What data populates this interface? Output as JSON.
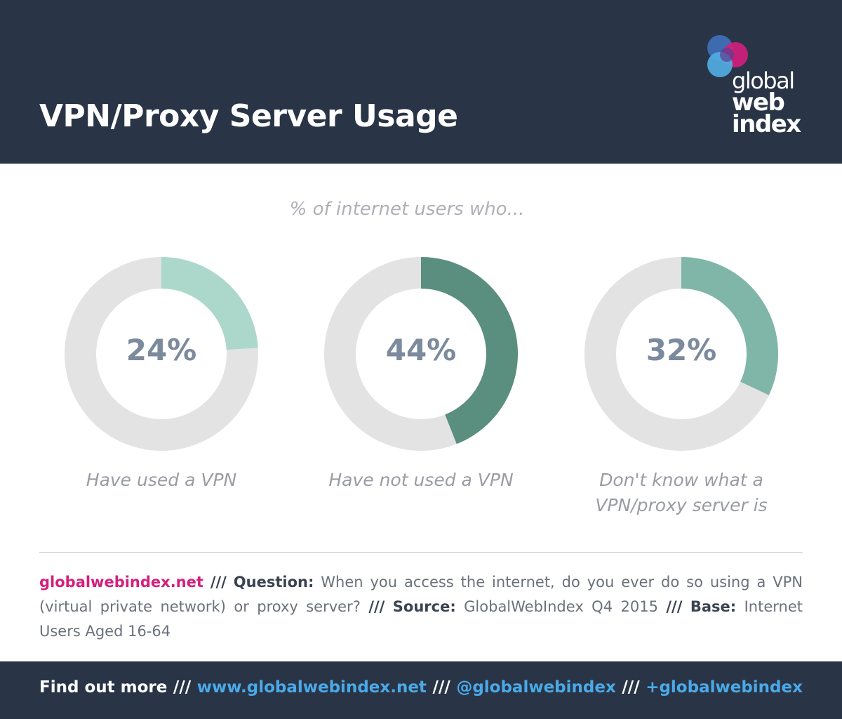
{
  "header": {
    "title": "VPN/Proxy Server Usage",
    "logo": {
      "line1": "global",
      "line2": "web",
      "line3": "index"
    }
  },
  "colors": {
    "header_bg": "#293546",
    "donut_track": "#e3e3e3",
    "accent_pink": "#d41f7d",
    "accent_blue": "#4aa9e8"
  },
  "chart_data": {
    "type": "pie",
    "variant": "donut",
    "title": "% of internet users who...",
    "categories": [
      "Have used a VPN",
      "Have not used a VPN",
      "Don't know what a VPN/proxy server is"
    ],
    "values": [
      24,
      44,
      32
    ],
    "value_labels": [
      "24%",
      "44%",
      "32%"
    ],
    "colors": [
      "#acd8cb",
      "#5a8e7e",
      "#7fb6a7"
    ]
  },
  "note": {
    "site": "globalwebindex.net",
    "sep": "///",
    "question_key": "Question:",
    "question": "When you access the internet, do you ever do so using a VPN (virtual private network) or proxy server?",
    "source_key": "Source:",
    "source": "GlobalWebIndex Q4 2015",
    "base_key": "Base:",
    "base": "Internet Users Aged 16-64"
  },
  "footer": {
    "find_out_more": "Find out more",
    "sep": "///",
    "website": "www.globalwebindex.net",
    "twitter": "@globalwebindex",
    "gplus": "+globalwebindex"
  }
}
